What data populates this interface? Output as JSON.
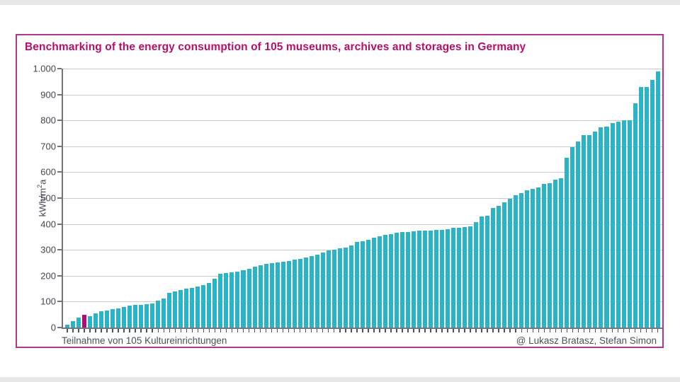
{
  "chart": {
    "title": "Benchmarking of the energy consumption of 105 museums, archives and storages in Germany",
    "x_caption": "Teilnahme von 105 Kultureinrichtungen",
    "attribution": "@ Lukasz Bratasz, Stefan Simon",
    "colors": {
      "title": "#b70e6c",
      "frame_border": "#b0368f",
      "bar": "#2bb4c5",
      "highlight": "#b20d76",
      "gridline": "#c9cbce",
      "axis": "#70757b",
      "text": "#42484f"
    }
  },
  "chart_data": {
    "type": "bar",
    "title": "Benchmarking of the energy consumption of 105 museums, archives and storages in Germany",
    "xlabel": "Teilnahme von 105 Kultureinrichtungen",
    "ylabel": "kWh/m²a",
    "ylim": [
      0,
      1000
    ],
    "grid": true,
    "y_tick_labels": [
      "1.000",
      "900",
      "800",
      "700",
      "600",
      "500",
      "400",
      "300",
      "200",
      "100",
      "0"
    ],
    "bar_color": "#2bb4c5",
    "highlight_color": "#b20d76",
    "highlight_index": 3,
    "n_bars": 105,
    "values": [
      10,
      25,
      38,
      50,
      45,
      56,
      62,
      66,
      70,
      74,
      79,
      84,
      87,
      88,
      90,
      93,
      104,
      111,
      135,
      140,
      146,
      150,
      153,
      158,
      164,
      171,
      188,
      208,
      210,
      213,
      215,
      220,
      226,
      234,
      240,
      245,
      248,
      252,
      255,
      258,
      262,
      266,
      270,
      275,
      282,
      290,
      297,
      301,
      305,
      310,
      318,
      330,
      333,
      340,
      347,
      352,
      358,
      362,
      365,
      368,
      370,
      372,
      373,
      374,
      375,
      376,
      378,
      381,
      384,
      386,
      389,
      392,
      406,
      429,
      433,
      462,
      470,
      483,
      497,
      511,
      520,
      531,
      536,
      542,
      556,
      558,
      570,
      576,
      656,
      697,
      719,
      742,
      742,
      756,
      774,
      777,
      790,
      795,
      800,
      800,
      865,
      930,
      930,
      955,
      990
    ]
  }
}
